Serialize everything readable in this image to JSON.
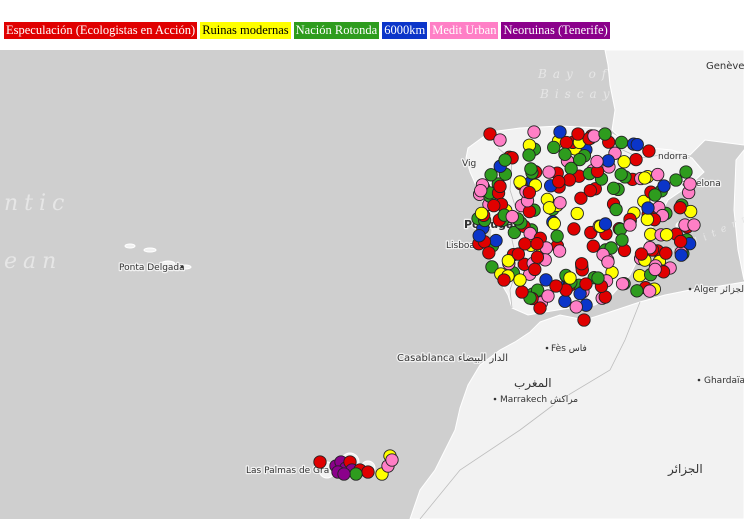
{
  "legend": {
    "items": [
      {
        "label": "Especulación (Ecologistas en Acción)",
        "bg": "#e00000",
        "fg": "#ffffff"
      },
      {
        "label": "Ruinas modernas",
        "bg": "#ffff00",
        "fg": "#000000"
      },
      {
        "label": "Nación Rotonda",
        "bg": "#2e9c1e",
        "fg": "#ffffff"
      },
      {
        "label": "6000km",
        "bg": "#0b35c9",
        "fg": "#ffffff"
      },
      {
        "label": "Medit Urban",
        "bg": "#ff7fc6",
        "fg": "#ffffff"
      },
      {
        "label": "Neoruinas (Tenerife)",
        "bg": "#8b008b",
        "fg": "#ffffff"
      }
    ]
  },
  "map": {
    "ocean_labels": {
      "bay": "Bay of",
      "biscay": "Biscay",
      "atl1": "ntic",
      "atl2": "ean"
    },
    "places": {
      "geneve": "Genève",
      "vigo": "Vig",
      "andorra": "ndorra",
      "barcelona": "arcelona",
      "portugal": "Portugal",
      "lisboa": "Lisboa",
      "ponta_delgada": "Ponta Delgada",
      "alger": "Alger الجزائر",
      "fes": "Fès فاس",
      "casablanca": "Casablanca الدار البيضاء",
      "morocco": "المغرب",
      "marrakech": "Marrakech مراكش",
      "ghardaia": "Ghardaïa",
      "algeria": "الجزائر",
      "las_palmas": "Las Palmas de Gra",
      "mediterranean": "Mediterrane"
    },
    "colors": {
      "water": "#cfcfcf",
      "land": "#f2f2f2",
      "red": "#e00000",
      "yellow": "#ffff00",
      "green": "#2e9c1e",
      "blue": "#0b35c9",
      "pink": "#ff7fc6",
      "purple": "#8b008b"
    }
  }
}
